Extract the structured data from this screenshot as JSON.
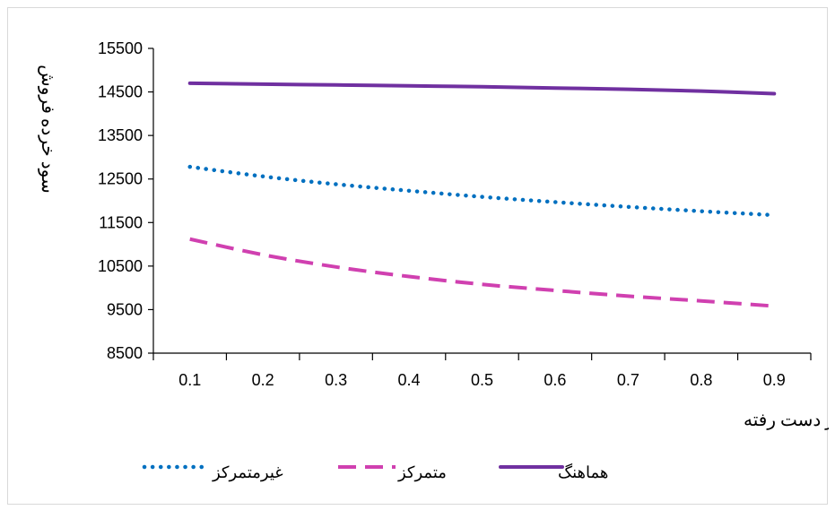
{
  "chart_data": {
    "type": "line",
    "title": "",
    "xlabel": "درصد فروش از دست رفته",
    "ylabel": "سود خرده فروش",
    "x": [
      0.1,
      0.2,
      0.3,
      0.4,
      0.5,
      0.6,
      0.7,
      0.8,
      0.9
    ],
    "xticks": [
      "0.1",
      "0.2",
      "0.3",
      "0.4",
      "0.5",
      "0.6",
      "0.7",
      "0.8",
      "0.9"
    ],
    "ylim": [
      8500,
      15500
    ],
    "yticks": [
      "8500",
      "9500",
      "10500",
      "11500",
      "12500",
      "13500",
      "14500",
      "15500"
    ],
    "grid": false,
    "legend_position": "bottom",
    "series": [
      {
        "name": "هماهنگ",
        "style": "solid",
        "color": "#7030a0",
        "values": [
          14700,
          14680,
          14660,
          14640,
          14620,
          14590,
          14560,
          14520,
          14460
        ]
      },
      {
        "name": "غیرمتمرکز",
        "style": "dotted",
        "color": "#0070c0",
        "values": [
          12780,
          12560,
          12380,
          12230,
          12090,
          11970,
          11860,
          11760,
          11670
        ]
      },
      {
        "name": "متمرکز",
        "style": "dashed",
        "color": "#d040b0",
        "values": [
          11120,
          10760,
          10480,
          10260,
          10080,
          9940,
          9810,
          9700,
          9580
        ]
      }
    ]
  }
}
